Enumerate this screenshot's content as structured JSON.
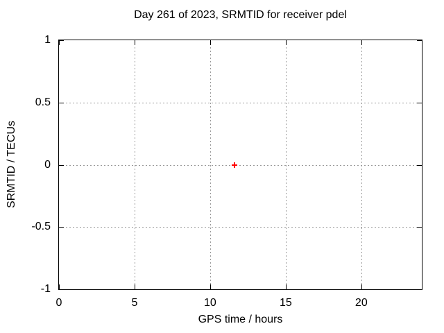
{
  "window": {
    "background_color": "#ffffff",
    "text_color": "#000000"
  },
  "chart_data": {
    "type": "scatter",
    "title": "Day 261 of 2023, SRMTID for receiver pdel",
    "xlabel": "GPS time / hours",
    "ylabel": "SRMTID / TECUs",
    "xlim": [
      0,
      24
    ],
    "ylim": [
      -1,
      1
    ],
    "grid": true,
    "legend_position": "none",
    "border": "solid black box with inward tick marks on all four sides",
    "grid_style": "dotted",
    "colors": {
      "grid": "#9a9a9a",
      "axis": "#000000",
      "marker": "#ff0000",
      "text": "#000000"
    },
    "xticks": [
      {
        "value": 0,
        "label": "0"
      },
      {
        "value": 5,
        "label": "5"
      },
      {
        "value": 10,
        "label": "10"
      },
      {
        "value": 15,
        "label": "15"
      },
      {
        "value": 20,
        "label": "20"
      }
    ],
    "yticks": [
      {
        "value": -1,
        "label": "-1"
      },
      {
        "value": -0.5,
        "label": "-0.5"
      },
      {
        "value": 0,
        "label": "0"
      },
      {
        "value": 0.5,
        "label": "0.5"
      },
      {
        "value": 1,
        "label": "1"
      }
    ],
    "series": [
      {
        "name": "SRMTID",
        "marker": "plus",
        "color": "#ff0000",
        "points": [
          {
            "x": 11.6,
            "y": 0.0
          }
        ]
      }
    ]
  }
}
